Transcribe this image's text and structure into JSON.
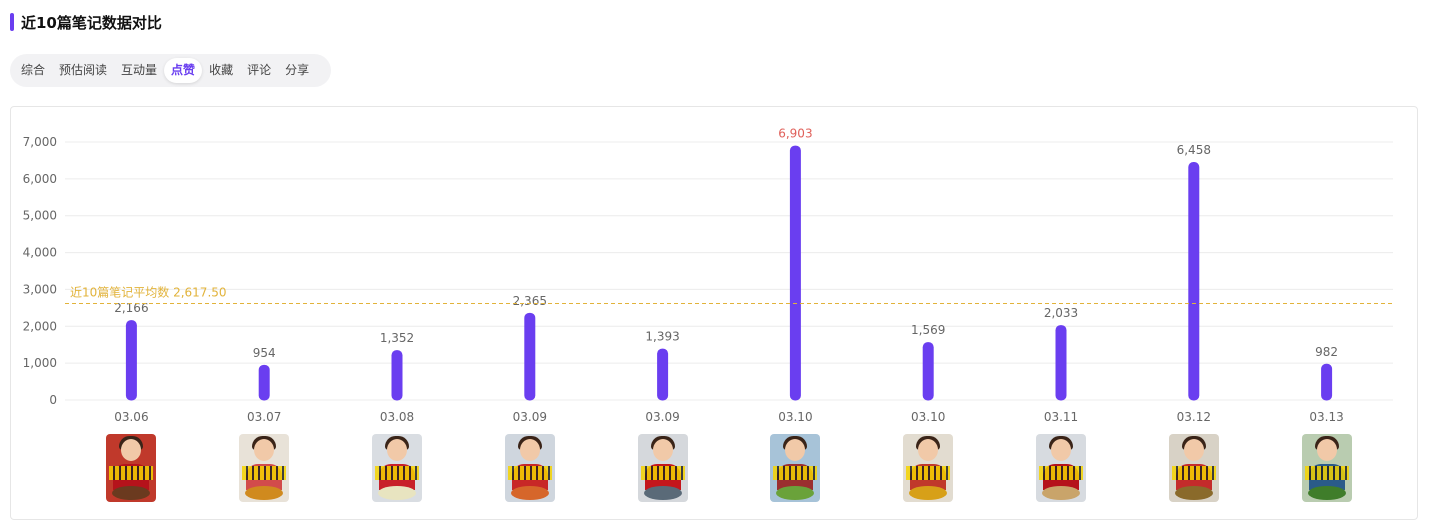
{
  "header": {
    "title": "近10篇笔记数据对比"
  },
  "tabs": [
    {
      "label": "综合",
      "active": false
    },
    {
      "label": "预估阅读",
      "active": false
    },
    {
      "label": "互动量",
      "active": false
    },
    {
      "label": "点赞",
      "active": true
    },
    {
      "label": "收藏",
      "active": false
    },
    {
      "label": "评论",
      "active": false
    },
    {
      "label": "分享",
      "active": false
    }
  ],
  "colors": {
    "accent": "#6a3ef0",
    "bar": "#6a3ef0",
    "max_label": "#e0605a",
    "average_line": "#e2b33a",
    "tick_text": "#666666",
    "grid": "#ececec"
  },
  "chart_data": {
    "type": "bar",
    "categories": [
      "03.06",
      "03.07",
      "03.08",
      "03.09",
      "03.09",
      "03.10",
      "03.10",
      "03.11",
      "03.12",
      "03.13"
    ],
    "values": [
      2166,
      954,
      1352,
      2365,
      1393,
      6903,
      1569,
      2033,
      6458,
      982
    ],
    "value_labels": [
      "2,166",
      "954",
      "1,352",
      "2,365",
      "1,393",
      "6,903",
      "1,569",
      "2,033",
      "6,458",
      "982"
    ],
    "ylim": [
      0,
      7000
    ],
    "yticks": [
      0,
      1000,
      2000,
      3000,
      4000,
      5000,
      6000,
      7000
    ],
    "ytick_labels": [
      "0",
      "1,000",
      "2,000",
      "3,000",
      "4,000",
      "5,000",
      "6,000",
      "7,000"
    ],
    "grid": true,
    "average": {
      "value": 2617.5,
      "label": "近10篇笔记平均数 2,617.50"
    },
    "highlight_max": true
  },
  "thumbnails": [
    {
      "name": "note-thumbnail",
      "bg": "#c0392b",
      "body": "#b5121b",
      "dish": "#6b3a1f"
    },
    {
      "name": "note-thumbnail",
      "bg": "#e8e2d8",
      "body": "#d24b4b",
      "dish": "#d08a1e"
    },
    {
      "name": "note-thumbnail",
      "bg": "#d9dde2",
      "body": "#c8202a",
      "dish": "#e8e4c0"
    },
    {
      "name": "note-thumbnail",
      "bg": "#cfd6de",
      "body": "#c82727",
      "dish": "#d6662a"
    },
    {
      "name": "note-thumbnail",
      "bg": "#d5d8dc",
      "body": "#c4161c",
      "dish": "#5a6a78"
    },
    {
      "name": "note-thumbnail",
      "bg": "#a7c3d8",
      "body": "#9b2f2f",
      "dish": "#6aa23a"
    },
    {
      "name": "note-thumbnail",
      "bg": "#e2dcd0",
      "body": "#c0392b",
      "dish": "#d7a018"
    },
    {
      "name": "note-thumbnail",
      "bg": "#d7dbe0",
      "body": "#b5121b",
      "dish": "#c9a46a"
    },
    {
      "name": "note-thumbnail",
      "bg": "#d8d2c6",
      "body": "#c42b2b",
      "dish": "#8a6a2a"
    },
    {
      "name": "note-thumbnail",
      "bg": "#b9ccb0",
      "body": "#2a5b8a",
      "dish": "#3f7d2a"
    }
  ]
}
